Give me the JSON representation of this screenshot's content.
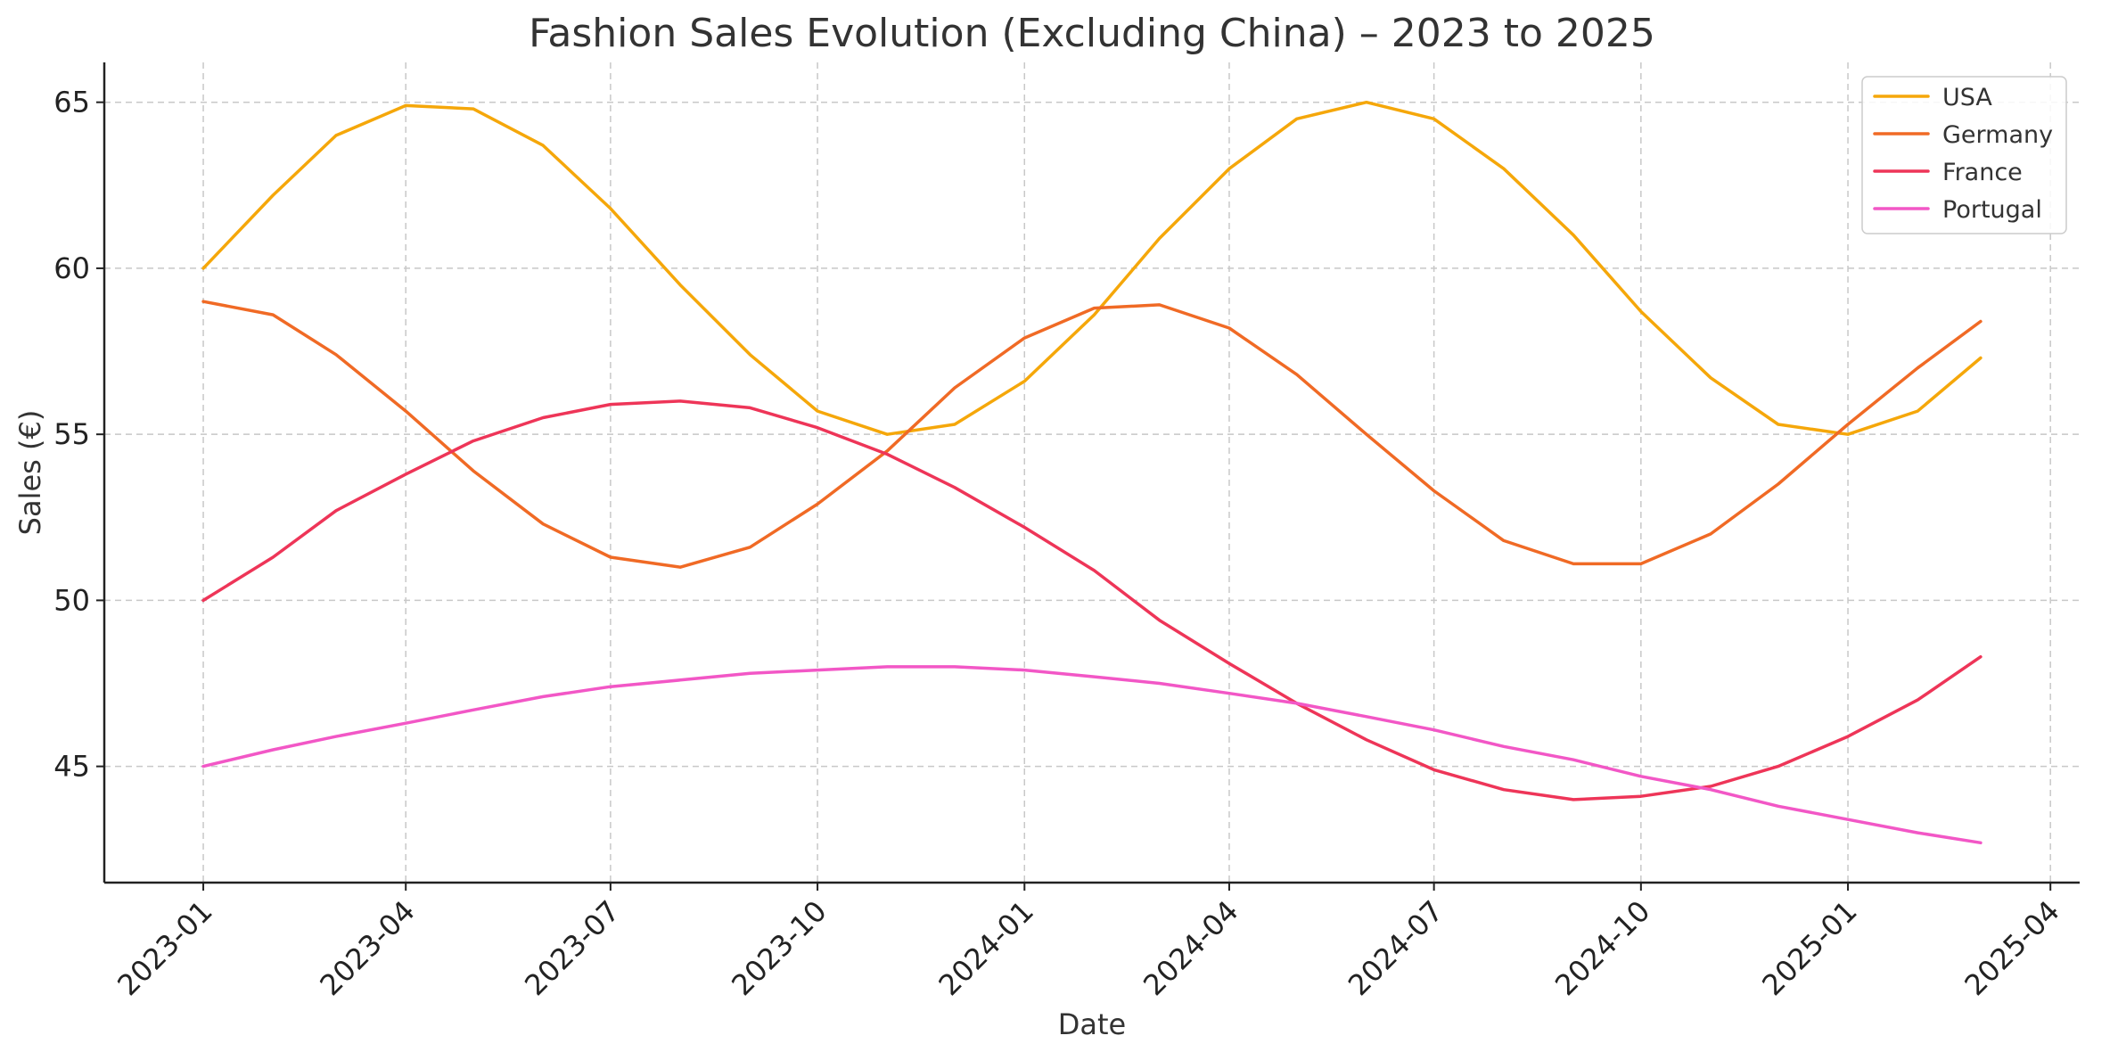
{
  "chart_data": {
    "type": "line",
    "title": "Fashion Sales Evolution (Excluding China) – 2023 to 2025",
    "xlabel": "Date",
    "ylabel": "Sales (€)",
    "x": [
      "2023-01",
      "2023-02",
      "2023-03",
      "2023-04",
      "2023-05",
      "2023-06",
      "2023-07",
      "2023-08",
      "2023-09",
      "2023-10",
      "2023-11",
      "2023-12",
      "2024-01",
      "2024-02",
      "2024-03",
      "2024-04",
      "2024-05",
      "2024-06",
      "2024-07",
      "2024-08",
      "2024-09",
      "2024-10",
      "2024-11",
      "2024-12",
      "2025-01",
      "2025-02",
      "2025-03"
    ],
    "xticks": [
      "2023-01",
      "2023-04",
      "2023-07",
      "2023-10",
      "2024-01",
      "2024-04",
      "2024-07",
      "2024-10",
      "2025-01",
      "2025-04"
    ],
    "xlim": [
      "2022-11-18",
      "2025-04-14"
    ],
    "yticks": [
      45,
      50,
      55,
      60,
      65
    ],
    "ylim": [
      41.5,
      66.2
    ],
    "grid": true,
    "legend_position": "top-right",
    "series": [
      {
        "name": "USA",
        "color": "#F5A70A",
        "values": [
          60.0,
          62.2,
          64.0,
          64.9,
          64.8,
          63.7,
          61.8,
          59.5,
          57.4,
          55.7,
          55.0,
          55.3,
          56.6,
          58.6,
          60.9,
          63.0,
          64.5,
          65.0,
          64.5,
          63.0,
          61.0,
          58.7,
          56.7,
          55.3,
          55.0,
          55.7,
          57.3
        ]
      },
      {
        "name": "Germany",
        "color": "#F06A25",
        "values": [
          59.0,
          58.6,
          57.4,
          55.7,
          53.9,
          52.3,
          51.3,
          51.0,
          51.6,
          52.9,
          54.5,
          56.4,
          57.9,
          58.8,
          58.9,
          58.2,
          56.8,
          55.0,
          53.3,
          51.8,
          51.1,
          51.1,
          52.0,
          53.5,
          55.3,
          57.0,
          58.4
        ]
      },
      {
        "name": "France",
        "color": "#EE3558",
        "values": [
          50.0,
          51.3,
          52.7,
          53.8,
          54.8,
          55.5,
          55.9,
          56.0,
          55.8,
          55.2,
          54.4,
          53.4,
          52.2,
          50.9,
          49.4,
          48.1,
          46.9,
          45.8,
          44.9,
          44.3,
          44.0,
          44.1,
          44.4,
          45.0,
          45.9,
          47.0,
          48.3
        ]
      },
      {
        "name": "Portugal",
        "color": "#F257C6",
        "values": [
          45.0,
          45.5,
          45.9,
          46.3,
          46.7,
          47.1,
          47.4,
          47.6,
          47.8,
          47.9,
          48.0,
          48.0,
          47.9,
          47.7,
          47.5,
          47.2,
          46.9,
          46.5,
          46.1,
          45.6,
          45.2,
          44.7,
          44.3,
          43.8,
          43.4,
          43.0,
          42.7
        ]
      }
    ]
  }
}
